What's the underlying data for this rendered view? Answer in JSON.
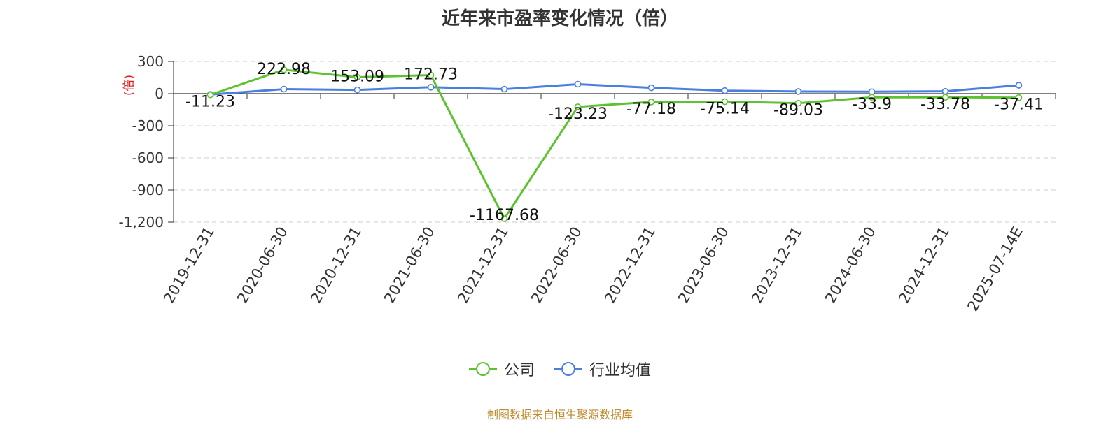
{
  "chart_data": {
    "type": "line",
    "title": "近年来市盈率变化情况（倍）",
    "ylabel": "(倍)",
    "categories": [
      "2019-12-31",
      "2020-06-30",
      "2020-12-31",
      "2021-06-30",
      "2021-12-31",
      "2022-06-30",
      "2022-12-31",
      "2023-06-30",
      "2023-12-31",
      "2024-06-30",
      "2024-12-31",
      "2025-07-14E"
    ],
    "ylim": [
      -1200,
      300
    ],
    "yticks": [
      300,
      0,
      -300,
      -600,
      -900,
      -1200
    ],
    "ytick_labels": [
      "300",
      "0",
      "-300",
      "-600",
      "-900",
      "-1,200"
    ],
    "grid": true,
    "legend_position": "bottom",
    "series": [
      {
        "name": "公司",
        "color": "#5cc22f",
        "values": [
          -11.23,
          222.98,
          153.09,
          172.73,
          -1167.68,
          -123.23,
          -77.18,
          -75.14,
          -89.03,
          -33.9,
          -33.78,
          -37.41
        ],
        "labels": [
          "-11.23",
          "222.98",
          "153.09",
          "172.73",
          "-1167.68",
          "-123.23",
          "-77.18",
          "-75.14",
          "-89.03",
          "-33.9",
          "-33.78",
          "-37.41"
        ]
      },
      {
        "name": "行业均值",
        "color": "#4a7ee0",
        "values": [
          -8,
          42,
          35,
          60,
          42,
          88,
          55,
          28,
          20,
          18,
          22,
          78
        ]
      }
    ]
  },
  "source_note": "制图数据来自恒生聚源数据库"
}
